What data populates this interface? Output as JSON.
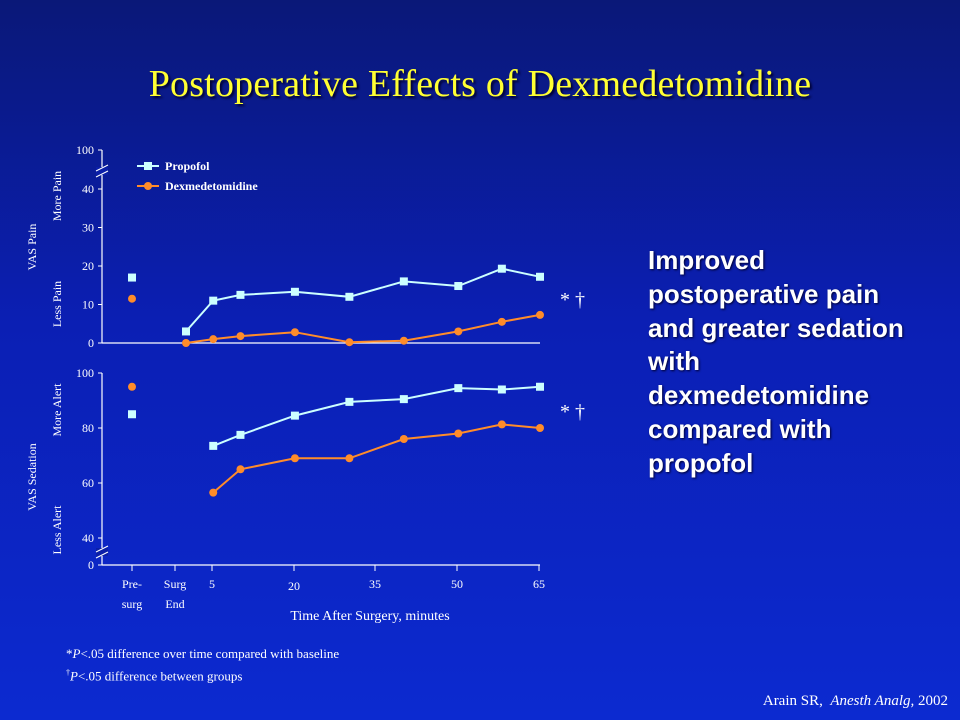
{
  "slide": {
    "title": "Postoperative Effects of Dexmedetomidine",
    "bullet": "Improved postoperative pain and greater sedation with dexmedetomidine compared with propofol",
    "footnote_star_symbol": "*",
    "footnote_star_p": "P",
    "footnote_star_text": "<.05 difference over time compared with baseline",
    "footnote_dagger_symbol": "†",
    "footnote_dagger_p": "P",
    "footnote_dagger_text": "<.05 difference between groups",
    "citation_author": "Arain SR,",
    "citation_journal": "Anesth Analg,",
    "citation_year": "2002"
  },
  "colors": {
    "propofol": "#ccffff",
    "dexmedetomidine": "#ff8c2a",
    "title": "#ffff33"
  },
  "chart_data": [
    {
      "type": "line",
      "ylabel": "VAS Pain",
      "ylabel_low": "Less Pain",
      "ylabel_high": "More Pain",
      "yticks": [
        "0",
        "10",
        "20",
        "30",
        "40",
        "100"
      ],
      "axis_break": true,
      "significance": "* †",
      "legend_position": "top-left",
      "series": [
        {
          "name": "Propofol",
          "marker": "square",
          "baseline": 17,
          "points": [
            [
              0,
              3
            ],
            [
              5,
              11
            ],
            [
              10,
              12.5
            ],
            [
              20,
              13.3
            ],
            [
              30,
              12
            ],
            [
              40,
              16
            ],
            [
              50,
              14.8
            ],
            [
              58,
              19.3
            ],
            [
              65,
              17.2
            ]
          ]
        },
        {
          "name": "Dexmedetomidine",
          "marker": "circle",
          "baseline": 11.5,
          "points": [
            [
              0,
              0
            ],
            [
              5,
              1
            ],
            [
              10,
              1.8
            ],
            [
              20,
              2.8
            ],
            [
              30,
              0.2
            ],
            [
              40,
              0.6
            ],
            [
              50,
              3
            ],
            [
              58,
              5.5
            ],
            [
              65,
              7.3
            ]
          ]
        }
      ]
    },
    {
      "type": "line",
      "ylabel": "VAS Sedation",
      "ylabel_low": "Less Alert",
      "ylabel_high": "More Alert",
      "yticks": [
        "0",
        "40",
        "60",
        "80",
        "100"
      ],
      "axis_break": true,
      "significance": "* †",
      "xlabel": "Time After Surgery, minutes",
      "xticks": [
        {
          "line1": "Pre-",
          "line2": "surg"
        },
        {
          "line1": "Surg",
          "line2": "End"
        },
        {
          "line1": "5",
          "line2": ""
        },
        {
          "line1": "20",
          "line2": ""
        },
        {
          "line1": "35",
          "line2": ""
        },
        {
          "line1": "50",
          "line2": ""
        },
        {
          "line1": "65",
          "line2": ""
        }
      ],
      "series": [
        {
          "name": "Propofol",
          "marker": "square",
          "baseline": 85,
          "points": [
            [
              5,
              73.5
            ],
            [
              10,
              77.5
            ],
            [
              20,
              84.5
            ],
            [
              30,
              89.5
            ],
            [
              40,
              90.5
            ],
            [
              50,
              94.5
            ],
            [
              58,
              94
            ],
            [
              65,
              95
            ]
          ]
        },
        {
          "name": "Dexmedetomidine",
          "marker": "circle",
          "baseline": 95,
          "points": [
            [
              5,
              56.5
            ],
            [
              10,
              65
            ],
            [
              20,
              69
            ],
            [
              30,
              69
            ],
            [
              40,
              76
            ],
            [
              50,
              78
            ],
            [
              58,
              81.3
            ],
            [
              65,
              80
            ]
          ]
        }
      ]
    }
  ]
}
